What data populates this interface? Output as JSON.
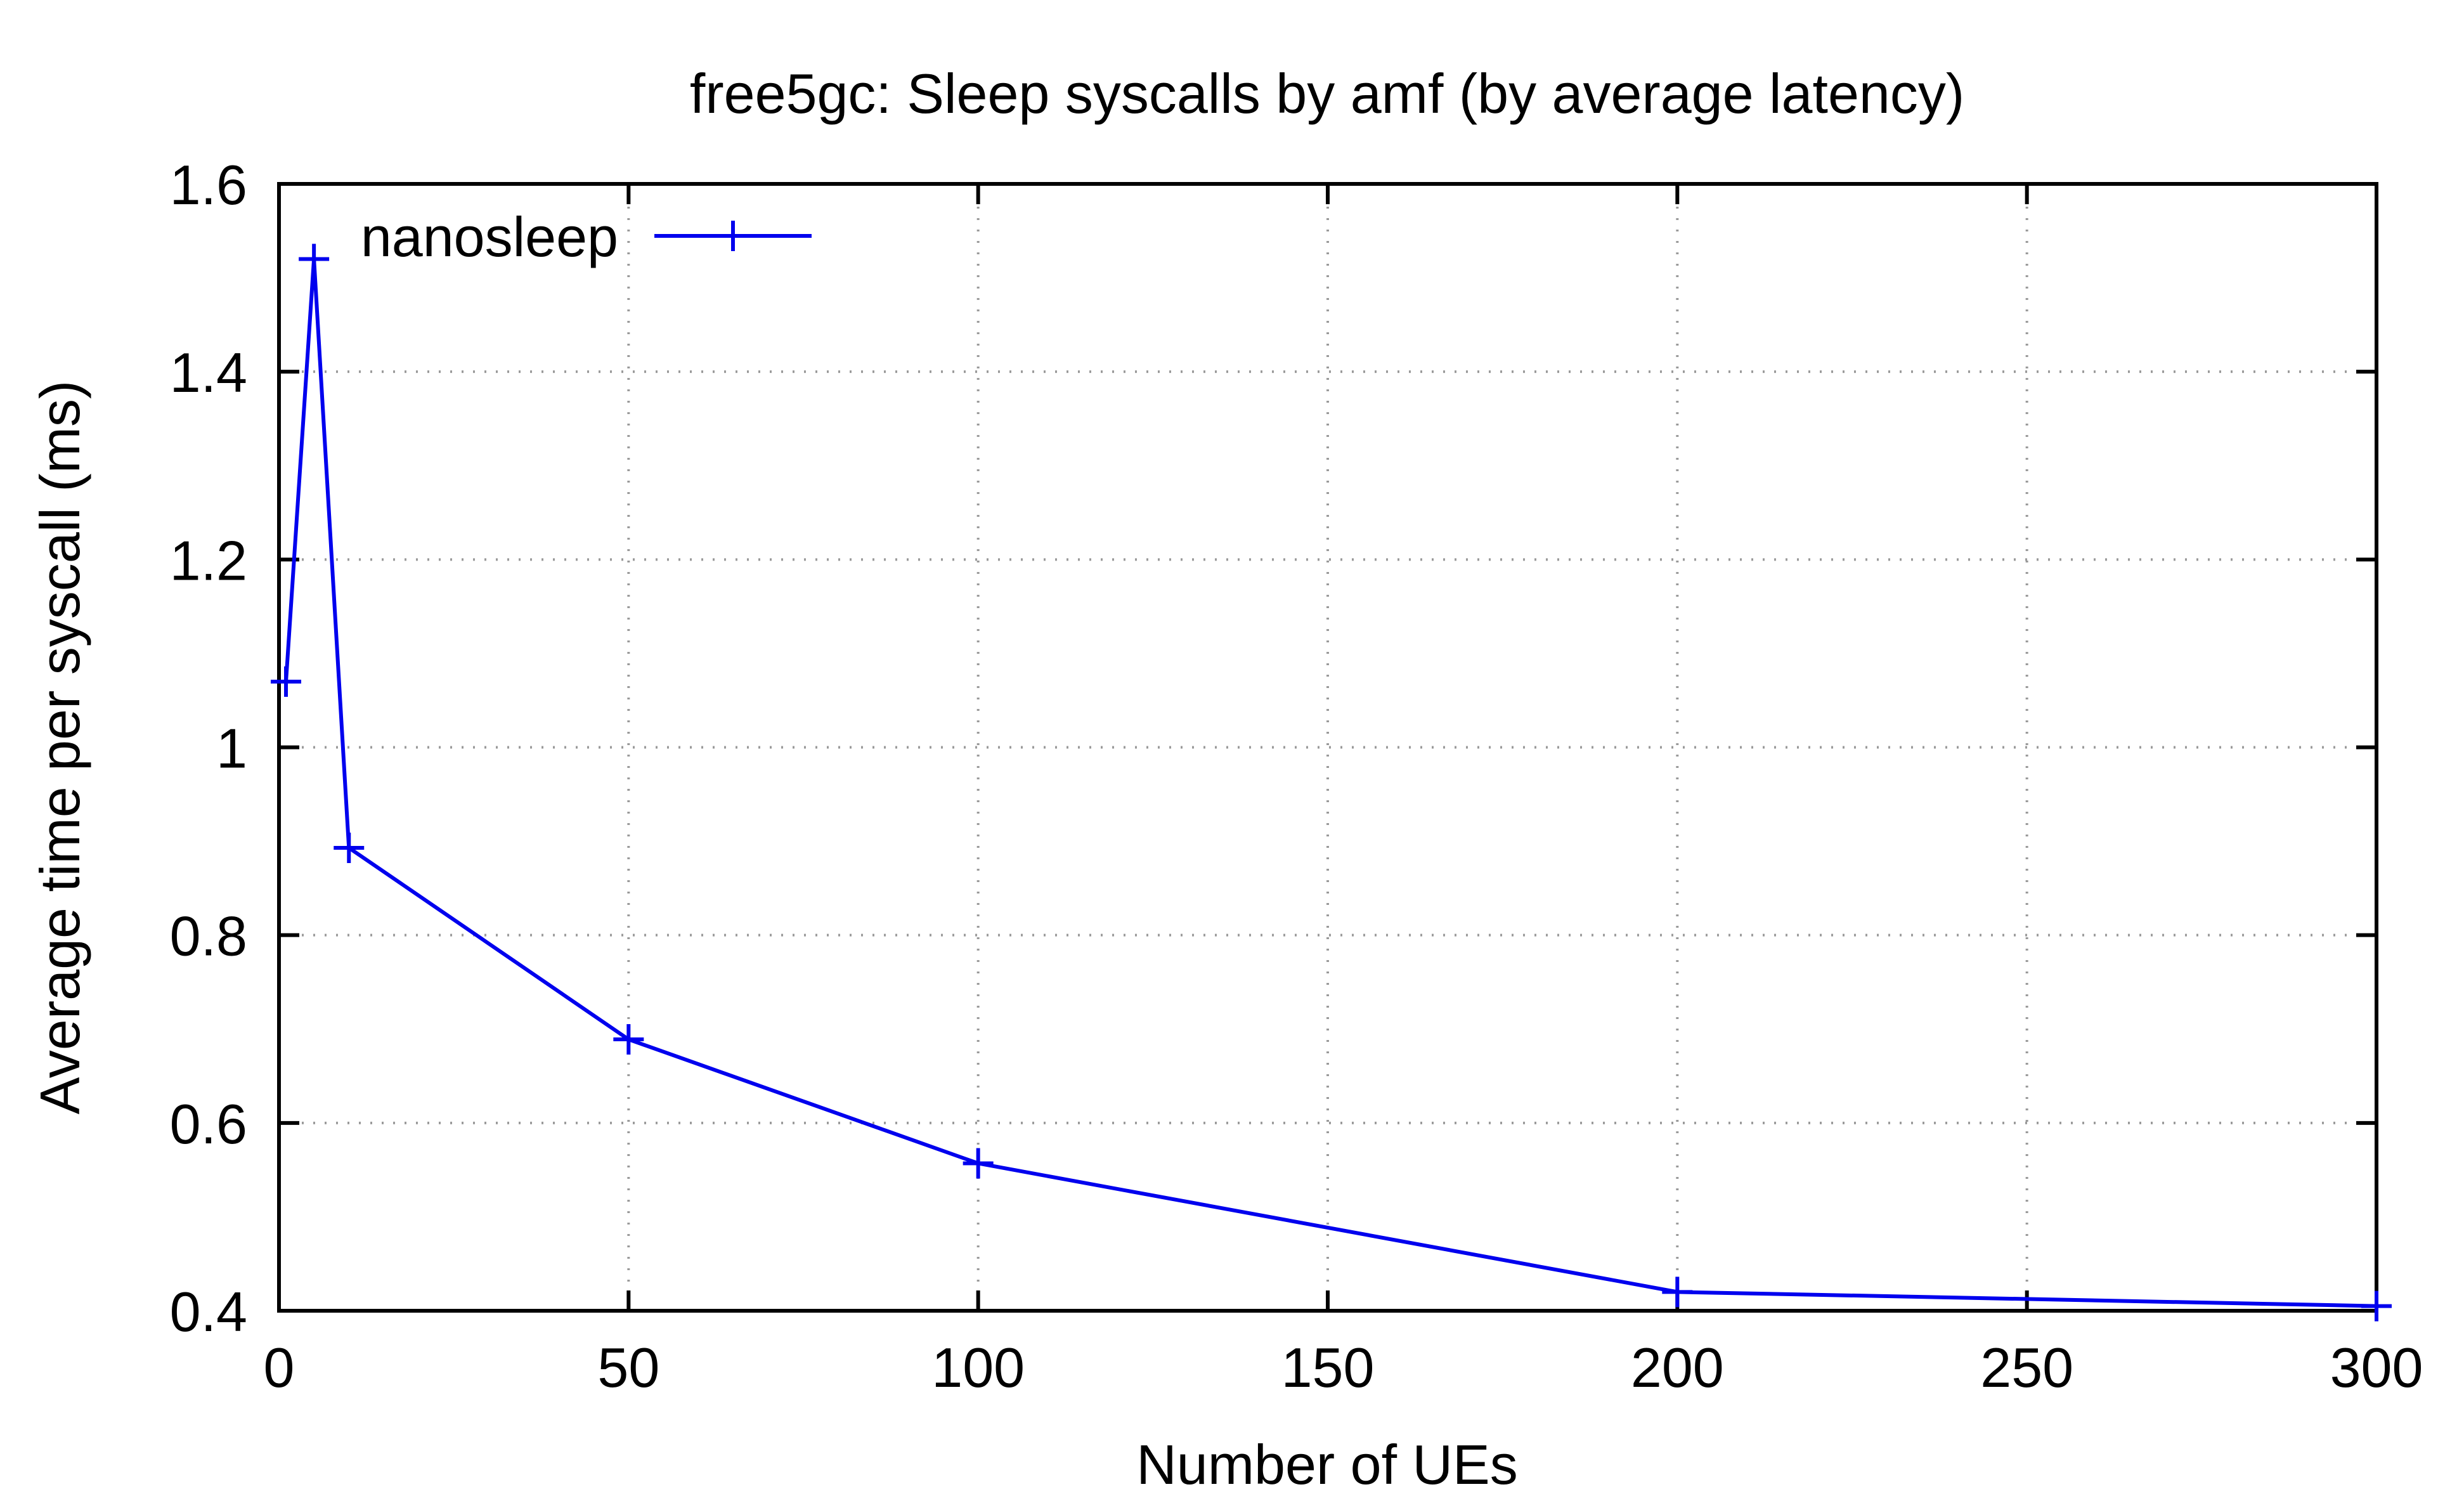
{
  "chart_data": {
    "type": "line",
    "title": "free5gc: Sleep syscalls by amf (by average latency)",
    "xlabel": "Number of UEs",
    "ylabel": "Average time per syscall (ms)",
    "xlim": [
      0,
      300
    ],
    "ylim": [
      0.4,
      1.6
    ],
    "xticks": [
      0,
      50,
      100,
      150,
      200,
      250,
      300
    ],
    "yticks": [
      0.4,
      0.6,
      0.8,
      1.0,
      1.2,
      1.4,
      1.6
    ],
    "xtick_labels": [
      "0",
      "50",
      "100",
      "150",
      "200",
      "250",
      "300"
    ],
    "ytick_labels": [
      "0.4",
      "0.6",
      "0.8",
      "1",
      "1.2",
      "1.4",
      "1.6"
    ],
    "grid": true,
    "grid_style": "dotted",
    "legend_position": "top-left",
    "series": [
      {
        "name": "nanosleep",
        "color": "#0000ee",
        "marker": "plus",
        "x": [
          1,
          5,
          10,
          50,
          100,
          200,
          300
        ],
        "y": [
          1.07,
          1.52,
          0.893,
          0.689,
          0.557,
          0.42,
          0.405
        ]
      }
    ]
  }
}
